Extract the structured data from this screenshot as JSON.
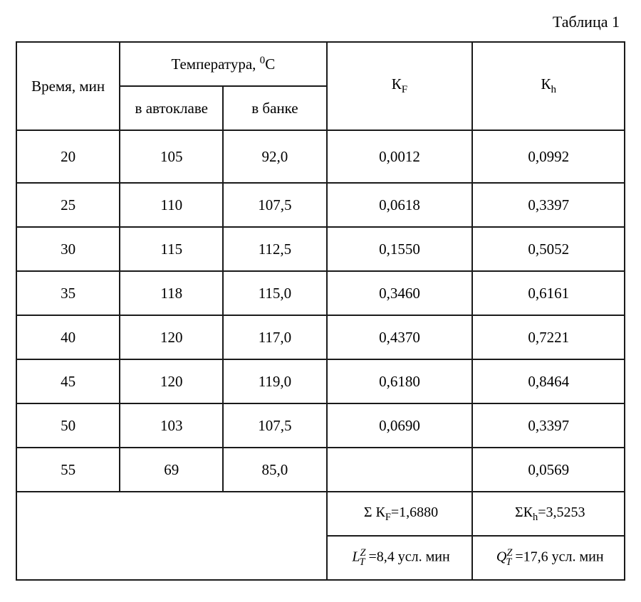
{
  "caption": "Таблица 1",
  "header": {
    "time": "Время, мин",
    "temp_group": "Температура, ",
    "temp_unit_sup": "0",
    "temp_unit": "С",
    "t_autoclave": "в автоклаве",
    "t_can": "в банке",
    "kf": "К",
    "kf_sub": "F",
    "kh": "К",
    "kh_sub": "h"
  },
  "rows": [
    {
      "time": "20",
      "t1": "105",
      "t2": "92,0",
      "kf": "0,0012",
      "kh": "0,0992"
    },
    {
      "time": "25",
      "t1": "110",
      "t2": "107,5",
      "kf": "0,0618",
      "kh": "0,3397"
    },
    {
      "time": "30",
      "t1": "115",
      "t2": "112,5",
      "kf": "0,1550",
      "kh": "0,5052"
    },
    {
      "time": "35",
      "t1": "118",
      "t2": "115,0",
      "kf": "0,3460",
      "kh": "0,6161"
    },
    {
      "time": "40",
      "t1": "120",
      "t2": "117,0",
      "kf": "0,4370",
      "kh": "0,7221"
    },
    {
      "time": "45",
      "t1": "120",
      "t2": "119,0",
      "kf": "0,6180",
      "kh": "0,8464"
    },
    {
      "time": "50",
      "t1": "103",
      "t2": "107,5",
      "kf": "0,0690",
      "kh": "0,3397"
    },
    {
      "time": "55",
      "t1": "69",
      "t2": "85,0",
      "kf": "",
      "kh": "0,0569"
    }
  ],
  "footer": {
    "sum_kf_pref": "Σ К",
    "sum_kf_sub": "F",
    "sum_kf_eq": "=1,6880",
    "sum_kh_pref": "ΣК",
    "sum_kh_sub": "h",
    "sum_kh_eq": "=3,5253",
    "L_sym": "L",
    "L_sub": "T",
    "L_sup": "Z",
    "L_eq": " =8,4 усл. мин",
    "Q_sym": "Q",
    "Q_sub": "T",
    "Q_sup": "Z",
    "Q_eq": " =17,6 усл. мин"
  }
}
